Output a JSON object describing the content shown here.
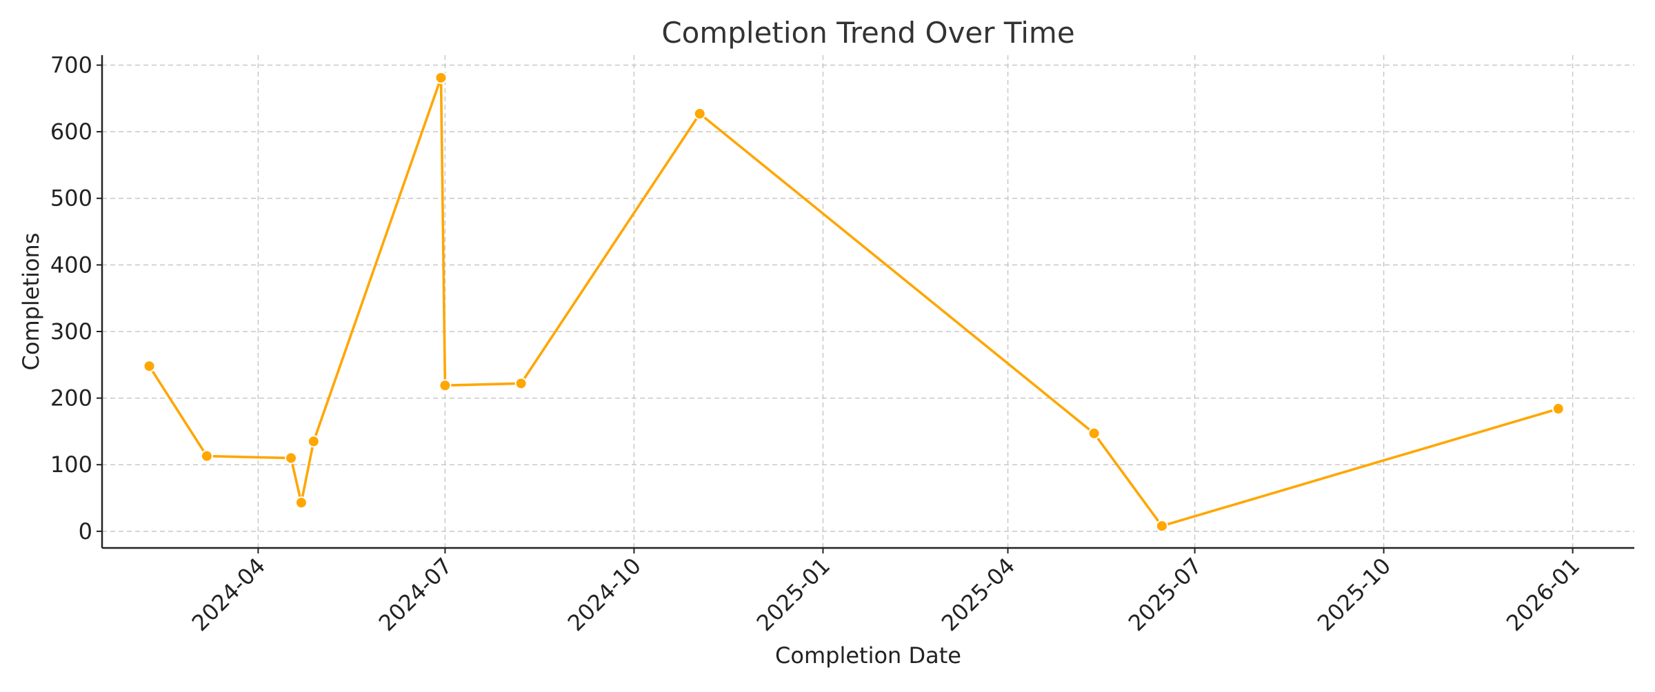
{
  "chart_data": {
    "type": "line",
    "title": "Completion Trend Over Time",
    "xlabel": "Completion Date",
    "ylabel": "Completions",
    "x_type": "date",
    "xlim": [
      "2024-01-16",
      "2026-01-31"
    ],
    "ylim": [
      -25,
      715
    ],
    "grid": true,
    "x_ticks": [
      "2024-04",
      "2024-07",
      "2024-10",
      "2025-01",
      "2025-04",
      "2025-07",
      "2025-10",
      "2026-01"
    ],
    "x_tick_dates": [
      "2024-04-01",
      "2024-07-01",
      "2024-10-01",
      "2025-01-01",
      "2025-04-01",
      "2025-07-01",
      "2025-10-01",
      "2026-01-01"
    ],
    "y_ticks": [
      0,
      100,
      200,
      300,
      400,
      500,
      600,
      700
    ],
    "series": [
      {
        "color": "#FFA600",
        "marker": "circle",
        "x": [
          "2024-02-08",
          "2024-03-07",
          "2024-04-17",
          "2024-04-22",
          "2024-04-28",
          "2024-06-29",
          "2024-07-01",
          "2024-08-07",
          "2024-11-02",
          "2025-05-13",
          "2025-06-15",
          "2025-12-25"
        ],
        "y": [
          248,
          113,
          110,
          43,
          135,
          681,
          219,
          222,
          627,
          147,
          8,
          184
        ]
      }
    ]
  }
}
